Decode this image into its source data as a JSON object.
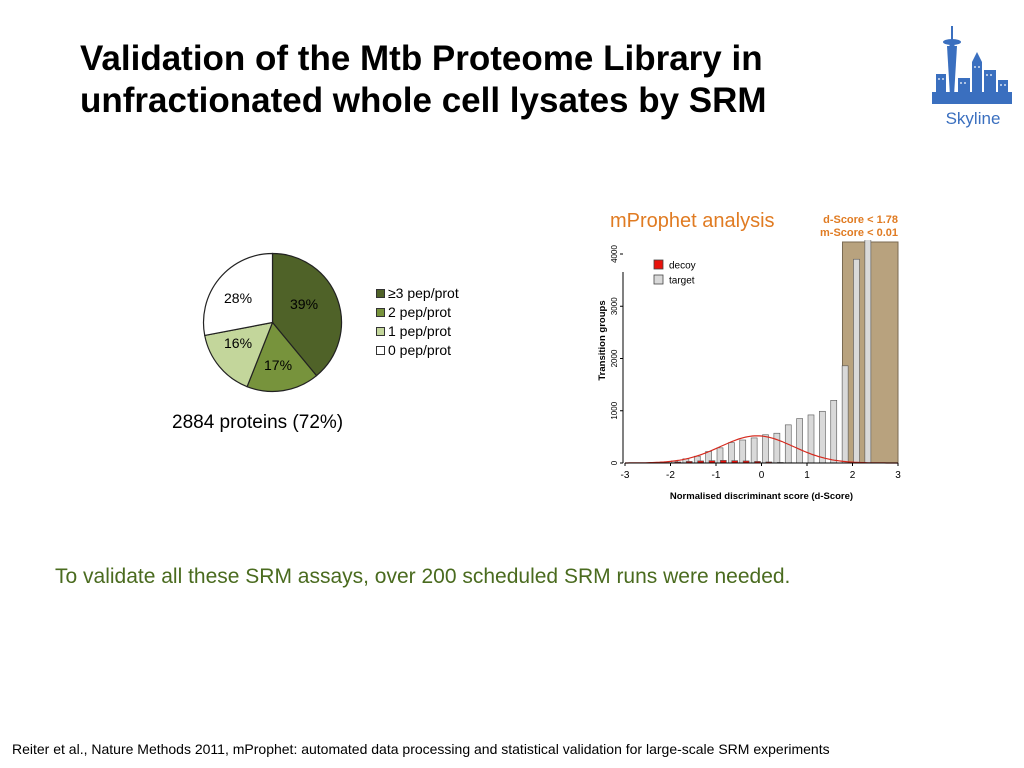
{
  "slide": {
    "title_line1": "Validation of the Mtb Proteome Library in",
    "title_line2": "unfractionated whole cell lysates by SRM",
    "logo_text": "Skyline",
    "pie_caption": "2884 proteins (72%)",
    "mprophet_title": "mProphet analysis",
    "threshold_d": "d-Score < 1.78",
    "threshold_m": "m-Score < 0.01",
    "note": "To validate all these SRM assays, over 200 scheduled SRM runs were needed.",
    "reference": "Reiter et al., Nature Methods 2011, mProphet: automated data processing and statistical validation for large-scale SRM experiments"
  },
  "colors": {
    "pie": [
      "#4f6228",
      "#77933c",
      "#c3d69b",
      "#ffffff"
    ],
    "decoy": "#e8120c",
    "target": "#d9d9d9",
    "shaded_region": "#b8a27e",
    "accent_orange": "#e07b22",
    "note_green": "#4a6b1f"
  },
  "chart_data": [
    {
      "type": "pie",
      "slices": [
        {
          "label": "≥3 pep/prot",
          "value": 39,
          "text": "39%"
        },
        {
          "label": "2 pep/prot",
          "value": 17,
          "text": "17%"
        },
        {
          "label": "1 pep/prot",
          "value": 16,
          "text": "16%"
        },
        {
          "label": "0 pep/prot",
          "value": 28,
          "text": "28%"
        }
      ],
      "legend_position": "right"
    },
    {
      "type": "bar",
      "xlabel": "Normalised discriminant score (d-Score)",
      "ylabel": "Transition groups",
      "xlim": [
        -3,
        3
      ],
      "ylim": [
        0,
        4000
      ],
      "x_ticks": [
        "-3",
        "-2",
        "-1",
        "0",
        "1",
        "2",
        "3"
      ],
      "y_ticks": [
        "0",
        "1000",
        "2000",
        "3000",
        "4000"
      ],
      "legend": [
        "decoy",
        "target"
      ],
      "legend_position": "top-left",
      "shaded_region": [
        1.78,
        3.0
      ],
      "bin_centers": [
        -2.25,
        -2.0,
        -1.75,
        -1.5,
        -1.25,
        -1.0,
        -0.75,
        -0.5,
        -0.25,
        0.0,
        0.25,
        0.5,
        0.75,
        1.0,
        1.25,
        1.5,
        1.75,
        2.0,
        2.25
      ],
      "series": [
        {
          "name": "target",
          "values": [
            20,
            40,
            80,
            130,
            220,
            290,
            390,
            440,
            480,
            540,
            570,
            730,
            850,
            920,
            990,
            1200,
            1860,
            3900,
            4500
          ]
        },
        {
          "name": "decoy",
          "values": [
            5,
            10,
            20,
            30,
            40,
            45,
            50,
            45,
            40,
            30,
            20,
            10,
            5,
            0,
            0,
            0,
            0,
            0,
            0
          ]
        }
      ],
      "decoy_fit_curve": {
        "mean": -0.1,
        "sd": 0.8,
        "peak": 520
      }
    }
  ]
}
